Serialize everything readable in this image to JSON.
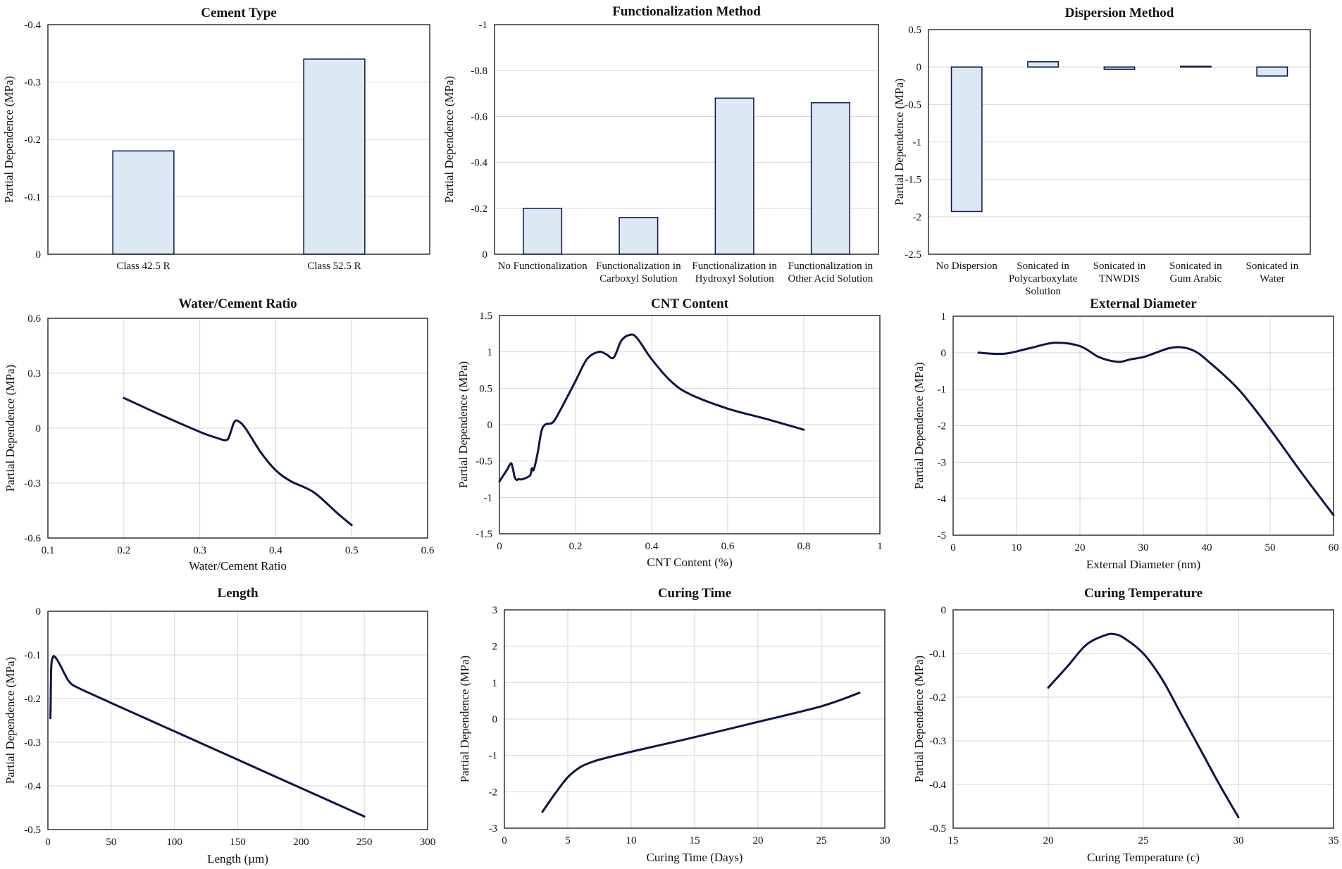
{
  "chart_data": [
    {
      "type": "bar",
      "title": "Cement Type",
      "xlabel": "",
      "ylabel": "Partial Dependence (MPa)",
      "ylim": [
        0,
        -0.4
      ],
      "yticks": [
        "-0.4",
        "-0.3",
        "-0.2",
        "-0.1",
        "0"
      ],
      "ytick_values": [
        -0.4,
        -0.3,
        -0.2,
        -0.1,
        0
      ],
      "categories": [
        [
          "Class 42.5 R"
        ],
        [
          "Class 52.5 R"
        ]
      ],
      "values": [
        -0.18,
        -0.34
      ]
    },
    {
      "type": "bar",
      "title": "Functionalization Method",
      "xlabel": "",
      "ylabel": "Partial Dependence (MPa)",
      "ylim": [
        0,
        -1
      ],
      "yticks": [
        "-1",
        "-0.8",
        "-0.6",
        "-0.4",
        "-0.2",
        "0"
      ],
      "ytick_values": [
        -1,
        -0.8,
        -0.6,
        -0.4,
        -0.2,
        0
      ],
      "categories": [
        [
          "No Functionalization"
        ],
        [
          "Functionalization in",
          "Carboxyl Solution"
        ],
        [
          "Functionalization in",
          "Hydroxyl Solution"
        ],
        [
          "Functionalization in",
          "Other Acid Solution"
        ]
      ],
      "values": [
        -0.2,
        -0.16,
        -0.68,
        -0.66
      ]
    },
    {
      "type": "bar",
      "title": "Dispersion Method",
      "xlabel": "",
      "ylabel": "Partial Dependence (MPa)",
      "ylim": [
        -2.5,
        0.5
      ],
      "yticks": [
        "0.5",
        "0",
        "-0.5",
        "-1",
        "-1.5",
        "-2",
        "-2.5"
      ],
      "ytick_values": [
        0.5,
        0,
        -0.5,
        -1,
        -1.5,
        -2,
        -2.5
      ],
      "categories": [
        [
          "No Dispersion"
        ],
        [
          "Sonicated in",
          "Polycarboxylate",
          "Solution"
        ],
        [
          "Sonicated in",
          "TNWDIS"
        ],
        [
          "Sonicated in",
          "Gum Arabic"
        ],
        [
          "Sonicated in",
          "Water"
        ]
      ],
      "values": [
        -1.93,
        0.07,
        -0.03,
        0.01,
        -0.12
      ]
    },
    {
      "type": "line",
      "title": "Water/Cement Ratio",
      "xlabel": "Water/Cement Ratio",
      "ylabel": "Partial Dependence (MPa)",
      "xlim": [
        0.1,
        0.6
      ],
      "ylim": [
        -0.6,
        0.6
      ],
      "xticks": [
        "0.1",
        "0.2",
        "0.3",
        "0.4",
        "0.5",
        "0.6"
      ],
      "xtick_values": [
        0.1,
        0.2,
        0.3,
        0.4,
        0.5,
        0.6
      ],
      "yticks": [
        "0.6",
        "0.3",
        "0",
        "-0.3",
        "-0.6"
      ],
      "ytick_values": [
        0.6,
        0.3,
        0,
        -0.3,
        -0.6
      ],
      "x": [
        0.2,
        0.25,
        0.3,
        0.32,
        0.335,
        0.34,
        0.345,
        0.35,
        0.36,
        0.38,
        0.4,
        0.42,
        0.45,
        0.48,
        0.5
      ],
      "y": [
        0.165,
        0.07,
        -0.02,
        -0.05,
        -0.065,
        -0.03,
        0.03,
        0.04,
        0.0,
        -0.13,
        -0.23,
        -0.29,
        -0.35,
        -0.46,
        -0.53
      ]
    },
    {
      "type": "line",
      "title": "CNT Content",
      "xlabel": "CNT Content (%)",
      "ylabel": "Partial Dependence (MPa)",
      "xlim": [
        0,
        1
      ],
      "ylim": [
        -1.5,
        1.5
      ],
      "xticks": [
        "0",
        "0.2",
        "0.4",
        "0.6",
        "0.8",
        "1"
      ],
      "xtick_values": [
        0,
        0.2,
        0.4,
        0.6,
        0.8,
        1
      ],
      "yticks": [
        "1.5",
        "1",
        "0.5",
        "0",
        "-0.5",
        "-1",
        "-1.5"
      ],
      "ytick_values": [
        1.5,
        1,
        0.5,
        0,
        -0.5,
        -1,
        -1.5
      ],
      "x": [
        0,
        0.01,
        0.02,
        0.03,
        0.035,
        0.04,
        0.045,
        0.05,
        0.06,
        0.08,
        0.085,
        0.09,
        0.1,
        0.11,
        0.12,
        0.14,
        0.16,
        0.2,
        0.23,
        0.26,
        0.28,
        0.3,
        0.32,
        0.34,
        0.36,
        0.4,
        0.45,
        0.5,
        0.6,
        0.7,
        0.8
      ],
      "y": [
        -0.78,
        -0.7,
        -0.62,
        -0.53,
        -0.6,
        -0.72,
        -0.76,
        -0.75,
        -0.75,
        -0.7,
        -0.6,
        -0.62,
        -0.4,
        -0.1,
        0.0,
        0.03,
        0.2,
        0.6,
        0.9,
        1.0,
        0.97,
        0.92,
        1.15,
        1.23,
        1.2,
        0.9,
        0.6,
        0.42,
        0.22,
        0.08,
        -0.07
      ]
    },
    {
      "type": "line",
      "title": "External Diameter",
      "xlabel": "External Diameter (nm)",
      "ylabel": "Partial Dependence (MPa)",
      "xlim": [
        0,
        60
      ],
      "ylim": [
        -5,
        1
      ],
      "xticks": [
        "0",
        "10",
        "20",
        "30",
        "40",
        "50",
        "60"
      ],
      "xtick_values": [
        0,
        10,
        20,
        30,
        40,
        50,
        60
      ],
      "yticks": [
        "1",
        "0",
        "-1",
        "-2",
        "-3",
        "-4",
        "-5"
      ],
      "ytick_values": [
        1,
        0,
        -1,
        -2,
        -3,
        -4,
        -5
      ],
      "x": [
        4,
        8,
        12,
        16,
        20,
        23,
        26,
        28,
        30,
        32,
        34,
        36,
        38,
        40,
        45,
        50,
        55,
        60
      ],
      "y": [
        0.0,
        -0.03,
        0.12,
        0.27,
        0.18,
        -0.12,
        -0.25,
        -0.18,
        -0.12,
        0.0,
        0.12,
        0.15,
        0.05,
        -0.2,
        -1.0,
        -2.1,
        -3.3,
        -4.45
      ]
    },
    {
      "type": "line",
      "title": "Length",
      "xlabel": "Length (µm)",
      "ylabel": "Partial Dependence (MPa)",
      "xlim": [
        0,
        300
      ],
      "ylim": [
        -0.5,
        0
      ],
      "xticks": [
        "0",
        "50",
        "100",
        "150",
        "200",
        "250",
        "300"
      ],
      "xtick_values": [
        0,
        50,
        100,
        150,
        200,
        250,
        300
      ],
      "yticks": [
        "0",
        "-0.1",
        "-0.2",
        "-0.3",
        "-0.4",
        "-0.5"
      ],
      "ytick_values": [
        0,
        -0.1,
        -0.2,
        -0.3,
        -0.4,
        -0.5
      ],
      "x": [
        2,
        2.2,
        2.5,
        3,
        4,
        5,
        7,
        10,
        14,
        18,
        25,
        50,
        100,
        150,
        200,
        250
      ],
      "y": [
        -0.245,
        -0.2,
        -0.14,
        -0.115,
        -0.105,
        -0.103,
        -0.11,
        -0.125,
        -0.148,
        -0.165,
        -0.177,
        -0.21,
        -0.275,
        -0.34,
        -0.405,
        -0.47
      ]
    },
    {
      "type": "line",
      "title": "Curing Time",
      "xlabel": "Curing Time (Days)",
      "ylabel": "Partial Dependence (MPa)",
      "xlim": [
        0,
        30
      ],
      "ylim": [
        -3,
        3
      ],
      "xticks": [
        "0",
        "5",
        "10",
        "15",
        "20",
        "25",
        "30"
      ],
      "xtick_values": [
        0,
        5,
        10,
        15,
        20,
        25,
        30
      ],
      "yticks": [
        "3",
        "2",
        "1",
        "0",
        "-1",
        "-2",
        "-3"
      ],
      "ytick_values": [
        3,
        2,
        1,
        0,
        -1,
        -2,
        -3
      ],
      "x": [
        3,
        4,
        5,
        6,
        7,
        8,
        10,
        12,
        15,
        20,
        25,
        28
      ],
      "y": [
        -2.55,
        -2.05,
        -1.6,
        -1.32,
        -1.17,
        -1.07,
        -0.9,
        -0.74,
        -0.5,
        -0.08,
        0.35,
        0.72
      ]
    },
    {
      "type": "line",
      "title": "Curing Temperature",
      "xlabel": "Curing Temperature (c)",
      "ylabel": "Partial Dependence (MPa)",
      "xlim": [
        15,
        35
      ],
      "ylim": [
        -0.5,
        0
      ],
      "xticks": [
        "15",
        "20",
        "25",
        "30",
        "35"
      ],
      "xtick_values": [
        15,
        20,
        25,
        30,
        35
      ],
      "yticks": [
        "0",
        "-0.1",
        "-0.2",
        "-0.3",
        "-0.4",
        "-0.5"
      ],
      "ytick_values": [
        0,
        -0.1,
        -0.2,
        -0.3,
        -0.4,
        -0.5
      ],
      "x": [
        20,
        21,
        22,
        23,
        23.5,
        24,
        25,
        26,
        27,
        28,
        29,
        30
      ],
      "y": [
        -0.178,
        -0.13,
        -0.08,
        -0.058,
        -0.056,
        -0.065,
        -0.1,
        -0.16,
        -0.24,
        -0.32,
        -0.4,
        -0.475
      ]
    }
  ]
}
